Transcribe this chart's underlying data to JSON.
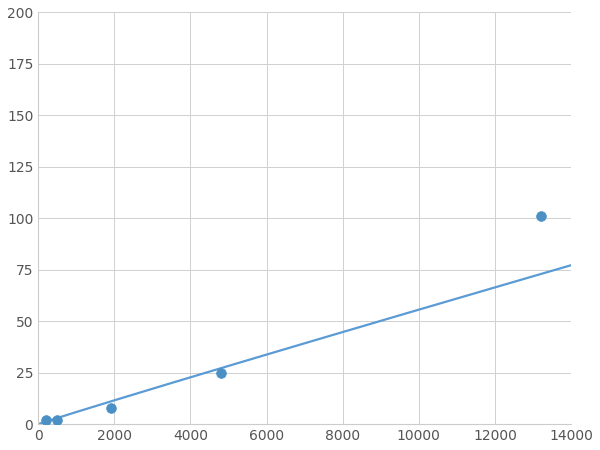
{
  "x_points": [
    200,
    500,
    1900,
    4800,
    13200
  ],
  "y_points": [
    2,
    2,
    8,
    25,
    101
  ],
  "line_color": "#5b9bd5",
  "marker_color": "#4a90c4",
  "marker_size": 7,
  "line_width": 1.6,
  "xlim": [
    0,
    14000
  ],
  "ylim": [
    0,
    200
  ],
  "xticks": [
    0,
    2000,
    4000,
    6000,
    8000,
    10000,
    12000,
    14000
  ],
  "yticks": [
    0,
    25,
    50,
    75,
    100,
    125,
    150,
    175,
    200
  ],
  "grid_color": "#d0d0d0",
  "background_color": "#ffffff",
  "tick_label_color": "#555555",
  "tick_fontsize": 10,
  "figsize": [
    6.0,
    4.5
  ],
  "dpi": 100
}
